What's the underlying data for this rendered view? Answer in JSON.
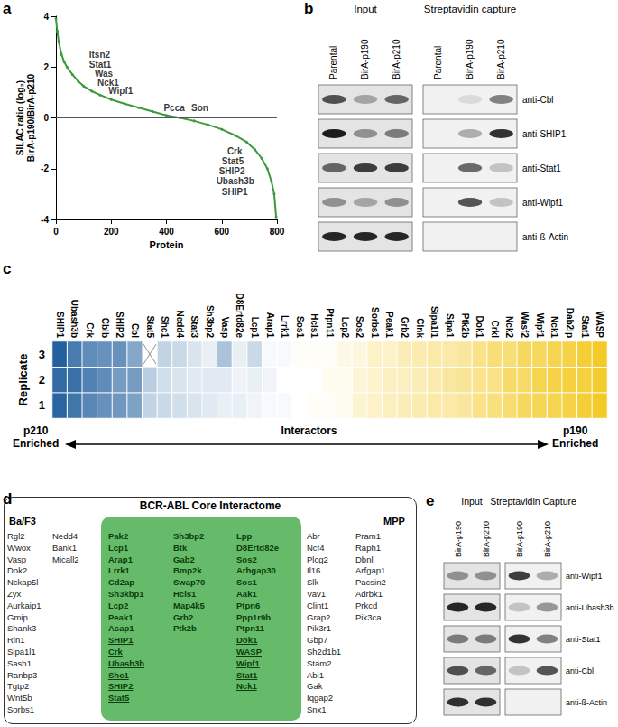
{
  "chart_data": [
    {
      "panel": "a",
      "type": "line",
      "color": "#3c9a3c",
      "marker": "circle",
      "line_style": "solid",
      "grid": false,
      "x": [
        0,
        5,
        10,
        20,
        30,
        40,
        60,
        80,
        100,
        130,
        160,
        200,
        250,
        300,
        350,
        400,
        450,
        500,
        550,
        600,
        650,
        690,
        720,
        745,
        765,
        780,
        790,
        797
      ],
      "values": [
        3.9,
        3.4,
        3.0,
        2.5,
        2.2,
        2.0,
        1.7,
        1.45,
        1.25,
        1.05,
        0.9,
        0.72,
        0.55,
        0.4,
        0.25,
        0.1,
        0.0,
        -0.12,
        -0.27,
        -0.45,
        -0.7,
        -0.95,
        -1.25,
        -1.6,
        -2.0,
        -2.5,
        -3.0,
        -3.9
      ],
      "xlim": [
        0,
        800
      ],
      "xticks": [
        0,
        200,
        400,
        600,
        800
      ],
      "ylim": [
        -4,
        4
      ],
      "yticks": [
        -4,
        -2,
        0,
        2,
        4
      ],
      "xlabel": "Protein",
      "ylabel": "SILAC ratio (log₂)\nBirA-p190/BirA-p210",
      "reference_y": 0,
      "annotations": [
        {
          "text": "Itsn2",
          "x": 120,
          "y": 2.5
        },
        {
          "text": "Stat1",
          "x": 120,
          "y": 2.1
        },
        {
          "text": "Was",
          "x": 140,
          "y": 1.75
        },
        {
          "text": "Nck1",
          "x": 150,
          "y": 1.4
        },
        {
          "text": "Wipf1",
          "x": 190,
          "y": 1.05
        },
        {
          "text": "Pcca",
          "x": 390,
          "y": 0.4
        },
        {
          "text": "Son",
          "x": 490,
          "y": 0.4
        },
        {
          "text": "Crk",
          "x": 620,
          "y": -1.3
        },
        {
          "text": "Stat5",
          "x": 600,
          "y": -1.7
        },
        {
          "text": "SHIP2",
          "x": 590,
          "y": -2.1
        },
        {
          "text": "Ubash3b",
          "x": 580,
          "y": -2.5
        },
        {
          "text": "SHIP1",
          "x": 600,
          "y": -2.9
        }
      ]
    },
    {
      "panel": "c",
      "type": "heatmap",
      "categories": [
        "SHIP1",
        "Ubash3b",
        "Crk",
        "Cblb",
        "SHIP2",
        "Cbl",
        "Stat5",
        "Shc1",
        "Nedd4",
        "Stat3",
        "Sh3bp2",
        "Vasp",
        "D8Ertd82e",
        "Lcp1",
        "Arap1",
        "Lrrk1",
        "Sos1",
        "Hcls1",
        "Ptpn11",
        "Lcp2",
        "Sos2",
        "Sorbs1",
        "Peak1",
        "Grb2",
        "Clnk",
        "Sipa1l1",
        "Sipa1",
        "Ptk2b",
        "Dok1",
        "Crkl",
        "Nck2",
        "Wasf2",
        "Wipf1",
        "Nck1",
        "Dab2ip",
        "Stat1",
        "WASP"
      ],
      "rows": [
        "1",
        "2",
        "3"
      ],
      "cells": [
        [
          -3.3,
          -3.0,
          -2.7,
          -2.5,
          -2.4,
          -2.2,
          -1.3,
          -1.2,
          -1.1,
          -1.0,
          -0.9,
          -0.8,
          -0.8,
          -0.7,
          -0.6,
          -0.6,
          -0.5,
          -0.4,
          -0.4,
          -0.3,
          0.1,
          0.2,
          0.3,
          0.4,
          0.5,
          0.6,
          0.6,
          0.7,
          1.0,
          1.1,
          1.3,
          1.5,
          1.6,
          1.7,
          1.8,
          2.0,
          2.2
        ],
        [
          -3.2,
          -3.1,
          -2.8,
          -2.6,
          -2.3,
          -2.3,
          -1.4,
          -1.1,
          -1.0,
          -0.9,
          -0.9,
          -0.9,
          -0.7,
          -0.8,
          -0.7,
          -0.5,
          -0.5,
          -0.5,
          -0.3,
          -0.3,
          0.0,
          0.1,
          0.3,
          0.3,
          0.4,
          0.5,
          0.7,
          0.8,
          0.9,
          1.0,
          1.4,
          1.4,
          1.7,
          1.8,
          1.9,
          1.9,
          2.1
        ],
        [
          -3.4,
          -2.9,
          -2.6,
          -2.5,
          -2.5,
          -2.1,
          null,
          -1.3,
          -1.2,
          -1.0,
          -0.8,
          -1.6,
          -0.8,
          -1.2,
          -0.6,
          -0.6,
          -0.4,
          -0.4,
          -0.4,
          -0.2,
          -0.1,
          0.2,
          0.2,
          0.4,
          0.5,
          0.6,
          0.6,
          0.7,
          1.0,
          1.2,
          1.2,
          1.5,
          1.5,
          1.7,
          1.8,
          2.0,
          2.2
        ]
      ],
      "zlim": [
        -3.5,
        2.5
      ],
      "colormap": [
        "#1b5a9a",
        "#ffffff",
        "#f2c40f"
      ],
      "ylabel": "Replicate",
      "x_label": "Interactors",
      "x_left_label": "p210\nEnriched",
      "x_right_label": "p190\nEnriched"
    }
  ],
  "blots": [
    {
      "panel": "b",
      "groups": [
        "Input",
        "Streptavidin capture"
      ],
      "lanes": [
        "Parental",
        "BirA-p190",
        "BirA-p210"
      ],
      "rows": [
        {
          "antibody": "anti-Cbl",
          "bands": [
            [
              0.7,
              0.3,
              0.6
            ],
            [
              0,
              0.1,
              0.5
            ]
          ]
        },
        {
          "antibody": "anti-SHIP1",
          "bands": [
            [
              0.95,
              0.4,
              0.5
            ],
            [
              0,
              0.3,
              0.85
            ]
          ]
        },
        {
          "antibody": "anti-Stat1",
          "bands": [
            [
              0.6,
              0.8,
              0.8
            ],
            [
              0,
              0.6,
              0.2
            ]
          ]
        },
        {
          "antibody": "anti-Wipf1",
          "bands": [
            [
              0.4,
              0.3,
              0.4
            ],
            [
              0,
              0.7,
              0.2
            ]
          ]
        },
        {
          "antibody": "anti-ß-Actin",
          "bands": [
            [
              0.9,
              0.9,
              0.9
            ],
            [
              0,
              0,
              0
            ]
          ]
        }
      ]
    },
    {
      "panel": "e",
      "groups": [
        "Input",
        "Streptavidin Capture"
      ],
      "lanes": [
        "BirA-p190",
        "BirA-p210"
      ],
      "rows": [
        {
          "antibody": "anti-Wipf1",
          "bands": [
            [
              0.4,
              0.4
            ],
            [
              0.8,
              0.3
            ]
          ]
        },
        {
          "antibody": "anti-Ubash3b",
          "bands": [
            [
              0.9,
              0.9
            ],
            [
              0.2,
              0.4
            ]
          ]
        },
        {
          "antibody": "anti-Stat1",
          "bands": [
            [
              0.5,
              0.5
            ],
            [
              0.85,
              0.5
            ]
          ]
        },
        {
          "antibody": "anti-Cbl",
          "bands": [
            [
              0.7,
              0.6
            ],
            [
              0.2,
              0.7
            ]
          ]
        },
        {
          "antibody": "anti-ß-Actin",
          "bands": [
            [
              0.85,
              0.85
            ],
            [
              0,
              0
            ]
          ]
        }
      ]
    }
  ],
  "interactome": {
    "panel": "d",
    "title": "BCR-ABL Core Interactome",
    "left": {
      "title": "Ba/F3",
      "columns": [
        [
          "Rgl2",
          "Wwox",
          "Vasp",
          "Dok2",
          "Nckap5l",
          "Zyx",
          "Aurkaip1",
          "Gmip",
          "Shank3",
          "Rin1",
          "Sipa1l1",
          "Sash1",
          "Ranbp3",
          "Tgtp2",
          "Wnt5b",
          "Sorbs1"
        ],
        [
          "Nedd4",
          "Bank1",
          "Micall2"
        ]
      ]
    },
    "core": {
      "columns": [
        [
          "Pak2",
          "Lcp1",
          "Arap1",
          "Lrrk1",
          "Cd2ap",
          "Sh3kbp1",
          "Lcp2",
          "Peak1",
          "Asap1"
        ],
        [
          "Sh3bp2",
          "Btk",
          "Gab2",
          "Bmp2k",
          "Swap70",
          "Hcls1",
          "Map4k5",
          "Grb2",
          "Ptk2b"
        ],
        [
          "Lpp",
          "D8Ertd82e",
          "Sos2",
          "Arhgap30",
          "Sos1",
          "Aak1",
          "Ptpn6",
          "Ppp1r9b",
          "Ptpn11"
        ]
      ],
      "underlined_columns": [
        [
          "SHIP1",
          "Crk",
          "Ubash3b",
          "Shc1",
          "SHIP2",
          "Stat5"
        ],
        [
          "Dok1",
          "WASP",
          "Wipf1",
          "Stat1",
          "Nck1"
        ]
      ]
    },
    "right": {
      "title": "MPP",
      "columns": [
        [
          "Abr",
          "Ncf4",
          "Plcg2",
          "Il16",
          "Slk",
          "Vav1",
          "Clint1",
          "Grap2",
          "Pik3r1",
          "Gbp7",
          "Sh2d1b1",
          "Stam2",
          "Abi1",
          "Gak",
          "Iqgap2",
          "Snx1"
        ],
        [
          "Pram1",
          "Raph1",
          "Dbnl",
          "Arfgap1",
          "Pacsin2",
          "Adrbk1",
          "Prkcd",
          "Pik3ca"
        ]
      ]
    }
  }
}
